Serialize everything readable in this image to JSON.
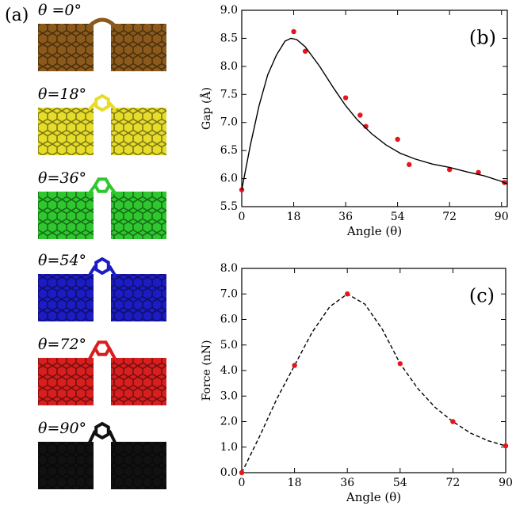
{
  "panel_a": {
    "label": "(a)",
    "structures": [
      {
        "label": "θ =0°",
        "color": "#8b5a1b"
      },
      {
        "label": "θ=18°",
        "color": "#e6dc2a"
      },
      {
        "label": "θ=36°",
        "color": "#2ec82e"
      },
      {
        "label": "θ=54°",
        "color": "#1c1cc4"
      },
      {
        "label": "θ=72°",
        "color": "#d81e1e"
      },
      {
        "label": "θ=90°",
        "color": "#111111"
      }
    ]
  },
  "chart_data": [
    {
      "type": "scatter",
      "annotation": "(b)",
      "xlabel": "Angle (θ)",
      "ylabel": "Gap (Å)",
      "xlim": [
        0,
        92
      ],
      "ylim": [
        5.5,
        9.0
      ],
      "xticks": [
        0,
        18,
        36,
        54,
        72,
        90
      ],
      "yticks": [
        5.5,
        {
          "value": 6,
          "label": "6.0"
        },
        6.5,
        {
          "value": 7,
          "label": "7.0"
        },
        7.5,
        {
          "value": 8,
          "label": "8.0"
        },
        8.5,
        {
          "value": 9,
          "label": "9.0"
        }
      ],
      "series": [
        {
          "mode": "markers",
          "color": "#e8141c",
          "x": [
            0,
            18,
            22,
            36,
            41,
            43,
            54,
            58,
            72,
            82,
            91
          ],
          "values": [
            5.8,
            8.62,
            8.27,
            7.44,
            7.13,
            6.93,
            6.7,
            6.25,
            6.16,
            6.11,
            5.93
          ]
        },
        {
          "mode": "line",
          "color": "#000000",
          "dash": false,
          "x": [
            0,
            3,
            6,
            9,
            12,
            15,
            17,
            19,
            22,
            27,
            32,
            36,
            40,
            45,
            50,
            55,
            60,
            66,
            72,
            78,
            84,
            90,
            92
          ],
          "values": [
            5.8,
            6.6,
            7.3,
            7.85,
            8.2,
            8.45,
            8.5,
            8.48,
            8.35,
            8.0,
            7.6,
            7.3,
            7.05,
            6.8,
            6.6,
            6.45,
            6.35,
            6.26,
            6.2,
            6.12,
            6.05,
            5.95,
            5.9
          ]
        }
      ]
    },
    {
      "type": "scatter",
      "annotation": "(c)",
      "xlabel": "Angle (θ)",
      "ylabel": "Force (nN)",
      "xlim": [
        0,
        90
      ],
      "ylim": [
        0,
        8
      ],
      "xticks": [
        0,
        18,
        36,
        54,
        72,
        90
      ],
      "yticks": [
        {
          "value": 0,
          "label": "0.0"
        },
        {
          "value": 1,
          "label": "1.0"
        },
        {
          "value": 2,
          "label": "2.0"
        },
        {
          "value": 3,
          "label": "3.0"
        },
        {
          "value": 4,
          "label": "4.0"
        },
        {
          "value": 5,
          "label": "5.0"
        },
        {
          "value": 6,
          "label": "6.0"
        },
        {
          "value": 7,
          "label": "7.0"
        },
        {
          "value": 8,
          "label": "8.0"
        }
      ],
      "series": [
        {
          "mode": "line",
          "color": "#000000",
          "dash": true,
          "x": [
            0,
            6,
            12,
            18,
            24,
            30,
            36,
            42,
            48,
            54,
            60,
            66,
            72,
            78,
            84,
            90
          ],
          "values": [
            0,
            1.4,
            2.9,
            4.2,
            5.5,
            6.5,
            7.0,
            6.6,
            5.6,
            4.27,
            3.3,
            2.55,
            2.0,
            1.55,
            1.25,
            1.05
          ]
        },
        {
          "mode": "markers",
          "color": "#e8141c",
          "x": [
            0,
            18,
            36,
            54,
            72,
            90
          ],
          "values": [
            0,
            4.2,
            7.0,
            4.27,
            2.0,
            1.05
          ]
        }
      ]
    }
  ]
}
